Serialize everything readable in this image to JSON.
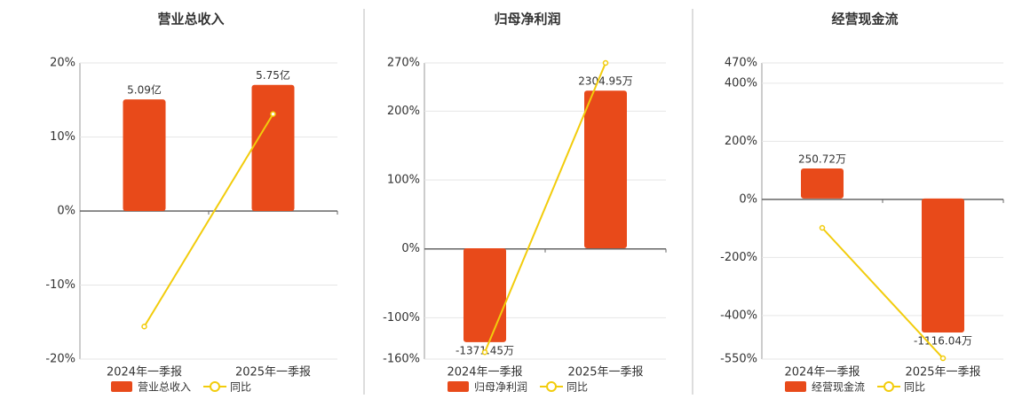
{
  "chart_data": [
    {
      "type": "combo",
      "title": "营业总收入",
      "categories": [
        "2024年一季报",
        "2025年一季报"
      ],
      "series": [
        {
          "name": "营业总收入",
          "type": "bar",
          "axis": "y2",
          "color": "#e84a1a",
          "values": [
            5.09,
            5.75
          ],
          "value_labels": [
            "5.09亿",
            "5.75亿"
          ]
        },
        {
          "name": "同比",
          "type": "line",
          "color": "#f2cc0c",
          "values": [
            -15.6,
            13.1
          ]
        }
      ],
      "ylim": [
        -20,
        20
      ],
      "yticks": [
        {
          "value": -20,
          "label": "-20%"
        },
        {
          "value": -10,
          "label": "-10%"
        },
        {
          "value": 0,
          "label": "0%"
        },
        {
          "value": 10,
          "label": "10%"
        },
        {
          "value": 20,
          "label": "20%"
        }
      ],
      "y2lim": [
        -6.75,
        6.75
      ],
      "grid": true
    },
    {
      "type": "combo",
      "title": "归母净利润",
      "categories": [
        "2024年一季报",
        "2025年一季报"
      ],
      "series": [
        {
          "name": "归母净利润",
          "type": "bar",
          "axis": "y2",
          "color": "#e84a1a",
          "values": [
            -1371.45,
            2304.95
          ],
          "value_labels": [
            "-1371.45万",
            "2304.95万"
          ]
        },
        {
          "name": "同比",
          "type": "line",
          "color": "#f2cc0c",
          "values": [
            -150,
            270
          ]
        }
      ],
      "ylim": [
        -160,
        270
      ],
      "yticks": [
        {
          "value": -160,
          "label": "-160%"
        },
        {
          "value": -100,
          "label": "-100%"
        },
        {
          "value": 0,
          "label": "0%"
        },
        {
          "value": 100,
          "label": "100%"
        },
        {
          "value": 200,
          "label": "200%"
        },
        {
          "value": 270,
          "label": "270%"
        }
      ],
      "y2lim": [
        -1620,
        2710
      ],
      "grid": true
    },
    {
      "type": "combo",
      "title": "经营现金流",
      "categories": [
        "2024年一季报",
        "2025年一季报"
      ],
      "series": [
        {
          "name": "经营现金流",
          "type": "bar",
          "axis": "y2",
          "color": "#e84a1a",
          "values": [
            250.72,
            -1116.04
          ],
          "value_labels": [
            "250.72万",
            "-1116.04万"
          ]
        },
        {
          "name": "同比",
          "type": "line",
          "color": "#f2cc0c",
          "values": [
            -98,
            -547
          ]
        }
      ],
      "ylim": [
        -550,
        470
      ],
      "yticks": [
        {
          "value": -550,
          "label": "-550%"
        },
        {
          "value": -400,
          "label": "-400%"
        },
        {
          "value": -200,
          "label": "-200%"
        },
        {
          "value": 0,
          "label": "0%"
        },
        {
          "value": 200,
          "label": "200%"
        },
        {
          "value": 400,
          "label": "400%"
        },
        {
          "value": 470,
          "label": "470%"
        }
      ],
      "y2lim": [
        -1338,
        1130
      ],
      "grid": true
    }
  ]
}
